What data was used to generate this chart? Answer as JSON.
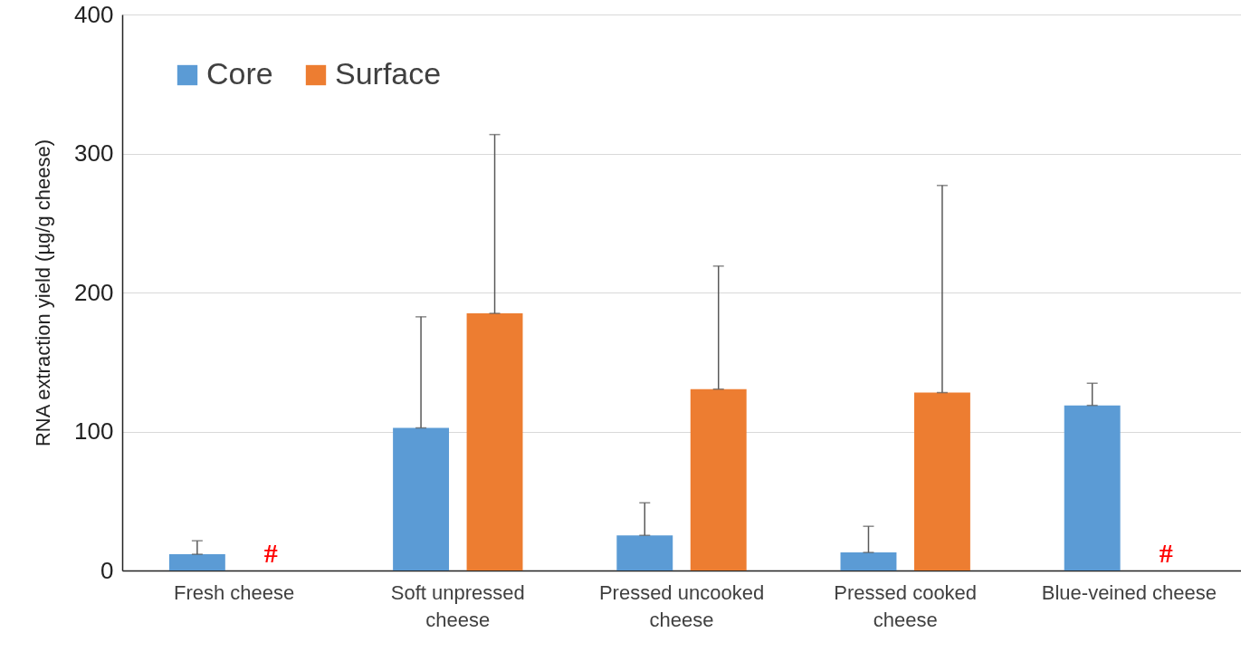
{
  "chart_data": {
    "type": "bar",
    "ylabel": "RNA extraction yield (µg/g cheese)",
    "categories": [
      "Fresh cheese",
      "Soft unpressed cheese",
      "Pressed uncooked cheese",
      "Pressed cooked cheese",
      "Blue-veined cheese"
    ],
    "series": [
      {
        "name": "Core",
        "color": "#5b9bd5",
        "values": [
          11.7,
          102.6,
          25.3,
          13,
          118.8
        ],
        "errors": [
          [
            11.7,
            21.4
          ],
          [
            102.6,
            182.5
          ],
          [
            25.3,
            48.7
          ],
          [
            13,
            31.8
          ],
          [
            118.8,
            134.7
          ]
        ]
      },
      {
        "name": "Surface",
        "color": "#ed7d31",
        "values": [
          null,
          185,
          130.5,
          128,
          null
        ],
        "errors": [
          null,
          [
            185,
            313.6
          ],
          [
            130.5,
            219
          ],
          [
            128,
            277
          ],
          null
        ]
      }
    ],
    "ylim": [
      0,
      400
    ],
    "yticks": [
      0,
      100,
      200,
      300,
      400
    ],
    "grid": "y",
    "legend": "top left",
    "annotations": [
      "#",
      "#"
    ]
  }
}
